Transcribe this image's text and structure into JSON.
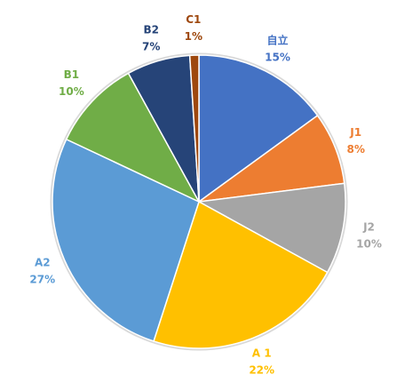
{
  "chart_data": {
    "type": "pie",
    "categories": [
      "自立",
      "J1",
      "J2",
      "A 1",
      "A2",
      "B1",
      "B2",
      "C1"
    ],
    "values": [
      15,
      8,
      10,
      22,
      27,
      10,
      7,
      1
    ],
    "value_labels": [
      "15%",
      "8%",
      "10%",
      "22%",
      "27%",
      "10%",
      "7%",
      "1%"
    ],
    "colors": [
      "#4472C4",
      "#ED7D31",
      "#A5A5A5",
      "#FFC000",
      "#5B9BD5",
      "#70AD47",
      "#264478",
      "#9E480E"
    ],
    "label_colors": [
      "#4472C4",
      "#ED7D31",
      "#A5A5A5",
      "#FFC000",
      "#5B9BD5",
      "#70AD47",
      "#264478",
      "#9E480E"
    ],
    "start_angle_deg": 0,
    "direction": "clockwise",
    "legend": "none",
    "data_labels": "outside"
  }
}
